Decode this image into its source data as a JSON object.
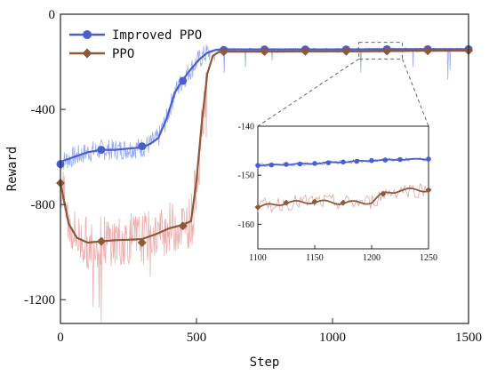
{
  "chart_data": {
    "type": "line",
    "xlabel": "Step",
    "ylabel": "Reward",
    "xlim": [
      0,
      1500
    ],
    "ylim": [
      -1300,
      0
    ],
    "x_ticks": [
      "0",
      "500",
      "1000",
      "1500"
    ],
    "y_ticks": [
      "0",
      "-400",
      "-800",
      "-1200"
    ],
    "grid": false,
    "legend_position": "top-left",
    "series": [
      {
        "name": "Improved PPO",
        "color": "#4a5fcc",
        "raw_color": "#8aa0f0",
        "marker": "circle",
        "x": [
          0,
          50,
          100,
          150,
          200,
          250,
          300,
          330,
          360,
          390,
          420,
          450,
          480,
          510,
          540,
          570,
          600,
          700,
          800,
          900,
          1000,
          1100,
          1200,
          1300,
          1400,
          1500
        ],
        "values": [
          -620,
          -600,
          -580,
          -570,
          -570,
          -565,
          -560,
          -545,
          -520,
          -440,
          -330,
          -275,
          -230,
          -190,
          -162,
          -150,
          -148,
          -148,
          -148,
          -148,
          -148,
          -148,
          -147,
          -147,
          -147,
          -147
        ],
        "markers_x": [
          0,
          150,
          300,
          450,
          600,
          750,
          900,
          1050,
          1200,
          1350,
          1500
        ],
        "markers_y": [
          -630,
          -570,
          -555,
          -280,
          -150,
          -148,
          -148,
          -148,
          -147,
          -147,
          -147
        ]
      },
      {
        "name": "PPO",
        "color": "#8b5a3c",
        "raw_color": "#e8a0a0",
        "marker": "diamond",
        "x": [
          0,
          30,
          60,
          100,
          150,
          200,
          250,
          300,
          350,
          400,
          450,
          480,
          500,
          520,
          540,
          560,
          580,
          600,
          700,
          800,
          900,
          1000,
          1100,
          1200,
          1300,
          1400,
          1500
        ],
        "values": [
          -710,
          -880,
          -940,
          -960,
          -955,
          -950,
          -948,
          -945,
          -925,
          -900,
          -885,
          -870,
          -700,
          -450,
          -250,
          -175,
          -160,
          -157,
          -157,
          -157,
          -156,
          -156,
          -156,
          -155,
          -154,
          -153,
          -153
        ],
        "markers_x": [
          0,
          150,
          300,
          450,
          600,
          750,
          900,
          1050,
          1200,
          1350,
          1500
        ],
        "markers_y": [
          -710,
          -955,
          -960,
          -890,
          -158,
          -157,
          -156,
          -156,
          -155,
          -154,
          -153
        ]
      }
    ],
    "inset": {
      "xlim": [
        1100,
        1250
      ],
      "ylim": [
        -165,
        -140
      ],
      "x_ticks": [
        "1100",
        "1150",
        "1200",
        "1250"
      ],
      "y_ticks": [
        "-140",
        "-150",
        "-160"
      ],
      "series": [
        {
          "name": "Improved PPO",
          "x": [
            1100,
            1125,
            1150,
            1175,
            1200,
            1225,
            1250
          ],
          "values": [
            -148,
            -147.8,
            -147.6,
            -147.3,
            -147,
            -146.8,
            -146.7
          ]
        },
        {
          "name": "PPO",
          "x": [
            1100,
            1125,
            1150,
            1175,
            1200,
            1210,
            1225,
            1250
          ],
          "values": [
            -156.5,
            -155.6,
            -155.4,
            -155.6,
            -155.5,
            -153.8,
            -153,
            -153
          ]
        }
      ]
    }
  }
}
